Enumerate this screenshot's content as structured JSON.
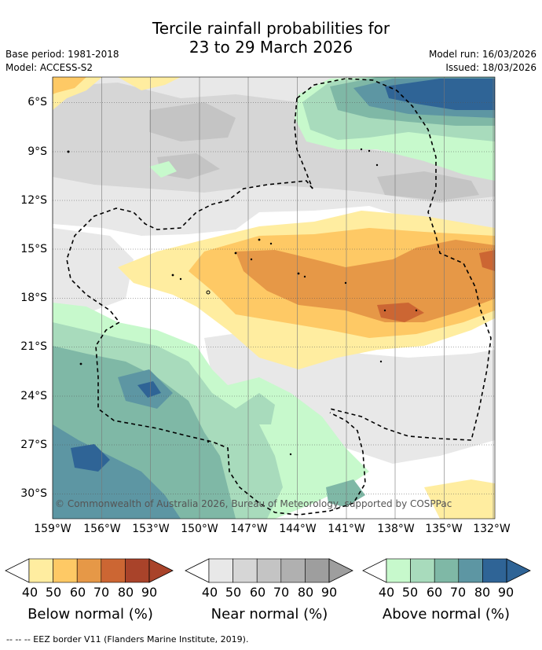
{
  "title": {
    "line1": "Tercile rainfall probabilities for",
    "line2": "23 to 29 March 2026"
  },
  "meta": {
    "base_period": "Base period: 1981-2018",
    "model": "Model: ACCESS-S2",
    "model_run": "Model run: 16/03/2026",
    "issued": "Issued: 18/03/2026"
  },
  "map": {
    "lat_labels": [
      "6°S",
      "9°S",
      "12°S",
      "15°S",
      "18°S",
      "21°S",
      "24°S",
      "27°S",
      "30°S"
    ],
    "lon_labels": [
      "159°W",
      "156°W",
      "153°W",
      "150°W",
      "147°W",
      "144°W",
      "141°W",
      "138°W",
      "135°W",
      "132°W"
    ],
    "copyright": "© Commonwealth of Australia 2026, Bureau of Meteorology, supported by COSPPac"
  },
  "colorbars": [
    {
      "title": "Below normal (%)",
      "ticks": [
        "40",
        "50",
        "60",
        "70",
        "80",
        "90"
      ],
      "colors": [
        "#ffeda0",
        "#fec965",
        "#e69847",
        "#cc6633",
        "#a9432a"
      ]
    },
    {
      "title": "Near normal (%)",
      "ticks": [
        "40",
        "50",
        "60",
        "70",
        "80",
        "90"
      ],
      "colors": [
        "#e8e8e8",
        "#d6d6d6",
        "#c4c4c4",
        "#b0b0b0",
        "#9e9e9e"
      ]
    },
    {
      "title": "Above normal (%)",
      "ticks": [
        "40",
        "50",
        "60",
        "70",
        "80",
        "90"
      ],
      "colors": [
        "#c7f9cc",
        "#a8dbbc",
        "#7fb8a6",
        "#5d96a3",
        "#2f6496"
      ]
    }
  ],
  "footer": "--  --  -- EEZ border V11 (Flanders Marine Institute, 2019)."
}
